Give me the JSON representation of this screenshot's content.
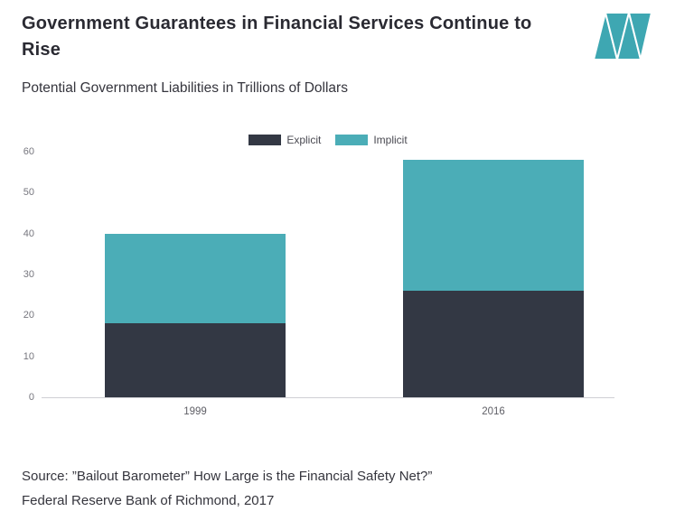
{
  "header": {
    "title": "Government Guarantees in Financial Services Continue to Rise",
    "subtitle": "Potential Government Liabilities in Trillions of Dollars"
  },
  "chart_data": {
    "type": "bar",
    "stacked": true,
    "title": "Government Guarantees in Financial Services Continue to Rise",
    "subtitle": "Potential Government Liabilities in Trillions of Dollars",
    "categories": [
      "1999",
      "2016"
    ],
    "series": [
      {
        "name": "Explicit",
        "values": [
          18,
          26
        ],
        "color": "#333844"
      },
      {
        "name": "Implicit",
        "values": [
          22,
          32
        ],
        "color": "#4BADB7"
      }
    ],
    "totals": [
      40,
      58
    ],
    "ylim": [
      0,
      60
    ],
    "yticks": [
      0,
      10,
      20,
      30,
      40,
      50,
      60
    ],
    "grid": false,
    "legend_position": "top-center",
    "xlabel": "",
    "ylabel": ""
  },
  "footer": {
    "source_line1": "Source: ”Bailout Barometer” How Large is the Financial Safety Net?”",
    "source_line2": "Federal Reserve Bank of Richmond, 2017"
  },
  "colors": {
    "explicit": "#333844",
    "implicit": "#4BADB7",
    "logo": "#3EA7B2"
  }
}
